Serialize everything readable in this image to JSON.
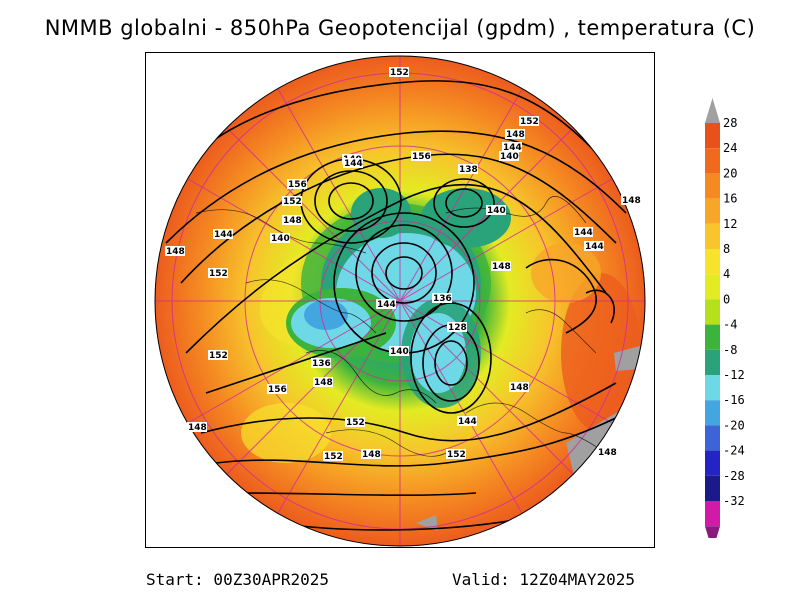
{
  "title": "NMMB globalni - 850hPa Geopotencijal (gpdm) , temperatura (C)",
  "footer": {
    "start": "Start: 00Z30APR2025",
    "valid": "Valid: 12Z04MAY2025"
  },
  "colorbar": {
    "ticks": [
      28,
      24,
      20,
      16,
      12,
      8,
      4,
      0,
      -4,
      -8,
      -12,
      -16,
      -20,
      -24,
      -28,
      -32
    ],
    "colors": [
      "#e8501c",
      "#f06a1e",
      "#f58a22",
      "#f8a628",
      "#f9c52c",
      "#f7e22c",
      "#e3eb23",
      "#b7e01c",
      "#3bb33d",
      "#2aa37a",
      "#6fd8e6",
      "#44a6e0",
      "#3d63d6",
      "#2424c4",
      "#1a1a8a",
      "#d21aa8"
    ],
    "top_color": "#a0a0a0",
    "bottom_color": "#8a1a7a"
  },
  "contour_labels": [
    {
      "text": "152"
    },
    {
      "text": "152"
    },
    {
      "text": "148"
    },
    {
      "text": "144"
    },
    {
      "text": "140"
    },
    {
      "text": "156"
    },
    {
      "text": "138"
    },
    {
      "text": "140"
    },
    {
      "text": "144"
    },
    {
      "text": "156"
    },
    {
      "text": "152"
    },
    {
      "text": "148"
    },
    {
      "text": "140"
    },
    {
      "text": "144"
    },
    {
      "text": "148"
    },
    {
      "text": "148"
    },
    {
      "text": "144"
    },
    {
      "text": "152"
    },
    {
      "text": "148"
    },
    {
      "text": "144"
    },
    {
      "text": "136"
    },
    {
      "text": "128"
    },
    {
      "text": "140"
    },
    {
      "text": "140"
    },
    {
      "text": "136"
    },
    {
      "text": "144"
    },
    {
      "text": "148"
    },
    {
      "text": "152"
    },
    {
      "text": "156"
    },
    {
      "text": "148"
    },
    {
      "text": "152"
    },
    {
      "text": "148"
    },
    {
      "text": "152"
    },
    {
      "text": "144"
    },
    {
      "text": "148"
    },
    {
      "text": "152"
    },
    {
      "text": "148"
    }
  ]
}
